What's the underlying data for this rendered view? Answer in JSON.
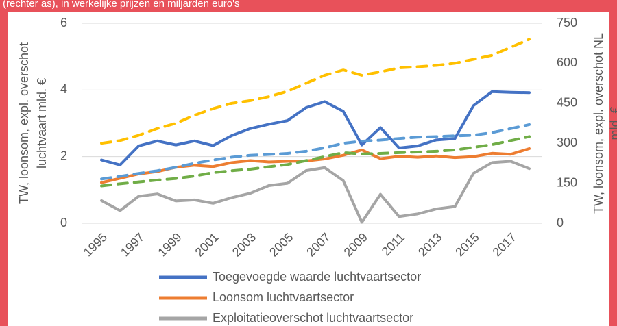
{
  "chart_data": {
    "type": "line",
    "subtitle": "(rechter as), in werkelijke prijzen en miljarden euro's",
    "ylabel": [
      "TW, loonsom, expl. overschot",
      "luchtvaart mld. €"
    ],
    "y2label": [
      "TW, loonsom, expl. overschot NL",
      "mld. €"
    ],
    "categories": [
      "1995",
      null,
      "1997",
      null,
      "1999",
      null,
      "2001",
      null,
      "2003",
      null,
      "2005",
      null,
      "2007",
      null,
      "2009",
      null,
      "2011",
      null,
      "2013",
      null,
      "2015",
      null,
      "2017",
      null
    ],
    "ylim": [
      0,
      6
    ],
    "yticks": [
      0,
      2,
      4,
      6
    ],
    "y2lim": [
      0,
      750
    ],
    "y2ticks": [
      0,
      150,
      300,
      450,
      600,
      750
    ],
    "grid": true,
    "series": [
      {
        "name": "Toegevoegde waarde luchtvaartsector",
        "color": "#4472c4",
        "values": [
          1.9,
          1.75,
          2.32,
          2.47,
          2.35,
          2.47,
          2.33,
          2.63,
          2.84,
          2.97,
          3.08,
          3.47,
          3.65,
          3.36,
          2.35,
          2.87,
          2.26,
          2.32,
          2.5,
          2.54,
          3.53,
          3.95,
          3.93,
          3.92
        ]
      },
      {
        "name": "Loonsom luchtvaartsector",
        "color": "#ed7d31",
        "values": [
          1.22,
          1.35,
          1.48,
          1.55,
          1.68,
          1.74,
          1.7,
          1.82,
          1.88,
          1.84,
          1.86,
          1.87,
          1.93,
          2.04,
          2.2,
          1.94,
          2.01,
          1.98,
          2.02,
          1.97,
          2.0,
          2.1,
          2.07,
          2.24
        ]
      },
      {
        "name": "Exploitatieoverschot luchtvaartsector",
        "color": "#a5a5a5",
        "values": [
          0.68,
          0.38,
          0.81,
          0.88,
          0.67,
          0.7,
          0.6,
          0.77,
          0.9,
          1.13,
          1.2,
          1.58,
          1.67,
          1.28,
          0.03,
          0.87,
          0.2,
          0.28,
          0.43,
          0.5,
          1.5,
          1.82,
          1.86,
          1.64
        ]
      },
      {
        "color": "#ffc000",
        "dashed": true,
        "axis": "y2",
        "values": [
          300,
          310,
          330,
          355,
          375,
          405,
          430,
          450,
          460,
          475,
          495,
          525,
          555,
          575,
          555,
          568,
          583,
          587,
          592,
          600,
          615,
          630,
          660,
          690
        ]
      },
      {
        "color": "#5b9bd5",
        "dashed": true,
        "axis": "y2",
        "values": [
          166,
          176,
          187,
          197,
          210,
          225,
          237,
          248,
          255,
          258,
          262,
          270,
          283,
          300,
          308,
          312,
          318,
          323,
          325,
          328,
          330,
          340,
          355,
          370
        ]
      },
      {
        "color": "#70ad47",
        "dashed": true,
        "axis": "y2",
        "values": [
          140,
          148,
          155,
          162,
          168,
          177,
          190,
          197,
          203,
          212,
          220,
          235,
          250,
          265,
          260,
          262,
          265,
          267,
          270,
          275,
          285,
          295,
          310,
          325
        ]
      }
    ]
  }
}
